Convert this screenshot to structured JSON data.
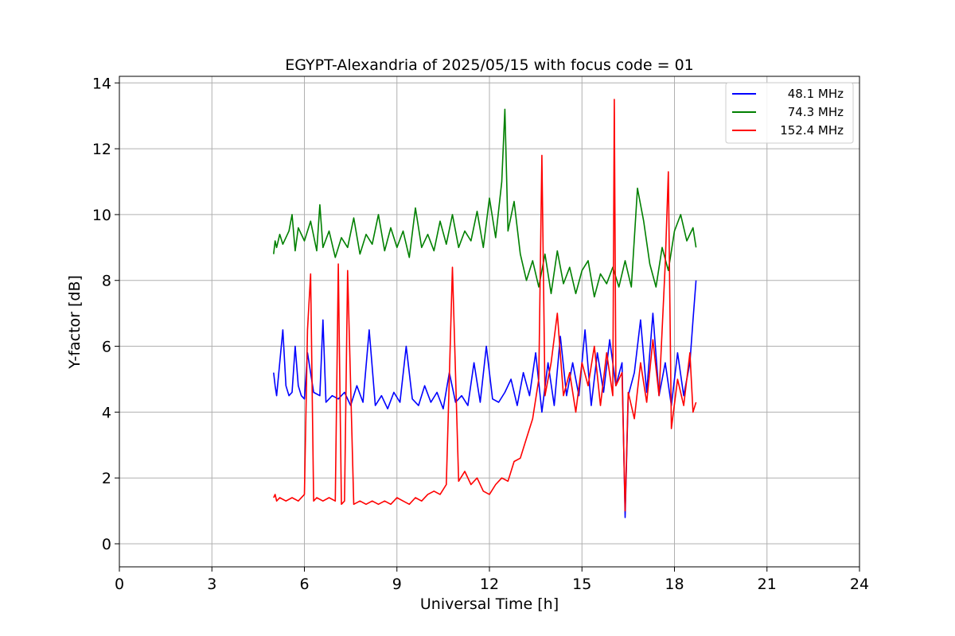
{
  "chart_data": {
    "type": "line",
    "title": "EGYPT-Alexandria of 2025/05/15 with focus code = 01",
    "xlabel": "Universal Time [h]",
    "ylabel": "Y-factor [dB]",
    "xlim": [
      0,
      24
    ],
    "ylim": [
      -0.7,
      14.2
    ],
    "xticks": [
      0,
      3,
      6,
      9,
      12,
      15,
      18,
      21,
      24
    ],
    "yticks": [
      0,
      2,
      4,
      6,
      8,
      10,
      12,
      14
    ],
    "grid": true,
    "legend_position": "top-right",
    "series": [
      {
        "name": "48.1 MHz",
        "color": "#0000ff",
        "x": [
          5.0,
          5.05,
          5.1,
          5.2,
          5.3,
          5.4,
          5.5,
          5.6,
          5.7,
          5.8,
          5.9,
          6.0,
          6.1,
          6.3,
          6.5,
          6.6,
          6.7,
          6.9,
          7.1,
          7.3,
          7.5,
          7.7,
          7.9,
          8.1,
          8.3,
          8.5,
          8.7,
          8.9,
          9.1,
          9.3,
          9.5,
          9.7,
          9.9,
          10.1,
          10.3,
          10.5,
          10.7,
          10.9,
          11.1,
          11.3,
          11.5,
          11.7,
          11.9,
          12.1,
          12.3,
          12.5,
          12.7,
          12.9,
          13.1,
          13.3,
          13.5,
          13.7,
          13.9,
          14.1,
          14.3,
          14.5,
          14.7,
          14.9,
          15.1,
          15.3,
          15.5,
          15.7,
          15.9,
          16.1,
          16.3,
          16.4,
          16.5,
          16.7,
          16.9,
          17.1,
          17.3,
          17.5,
          17.7,
          17.9,
          18.1,
          18.3,
          18.5,
          18.6,
          18.7
        ],
        "values": [
          5.2,
          4.8,
          4.5,
          5.5,
          6.5,
          4.8,
          4.5,
          4.6,
          6.0,
          4.8,
          4.5,
          4.4,
          5.8,
          4.6,
          4.5,
          6.8,
          4.3,
          4.5,
          4.4,
          4.6,
          4.2,
          4.8,
          4.3,
          6.5,
          4.2,
          4.5,
          4.1,
          4.6,
          4.3,
          6.0,
          4.4,
          4.2,
          4.8,
          4.3,
          4.6,
          4.1,
          5.2,
          4.3,
          4.5,
          4.2,
          5.5,
          4.3,
          6.0,
          4.4,
          4.3,
          4.6,
          5.0,
          4.2,
          5.2,
          4.5,
          5.8,
          4.0,
          5.5,
          4.2,
          6.3,
          4.5,
          5.5,
          4.5,
          6.5,
          4.2,
          5.8,
          4.6,
          6.2,
          4.8,
          5.5,
          0.8,
          4.5,
          5.2,
          6.8,
          4.6,
          7.0,
          4.5,
          5.5,
          4.2,
          5.8,
          4.5,
          5.5,
          6.8,
          8.0
        ]
      },
      {
        "name": "74.3 MHz",
        "color": "#008000",
        "x": [
          5.0,
          5.05,
          5.1,
          5.2,
          5.3,
          5.5,
          5.6,
          5.7,
          5.8,
          6.0,
          6.2,
          6.4,
          6.5,
          6.6,
          6.8,
          7.0,
          7.2,
          7.4,
          7.6,
          7.8,
          8.0,
          8.2,
          8.4,
          8.6,
          8.8,
          9.0,
          9.2,
          9.4,
          9.6,
          9.8,
          10.0,
          10.2,
          10.4,
          10.6,
          10.8,
          11.0,
          11.2,
          11.4,
          11.6,
          11.8,
          12.0,
          12.2,
          12.4,
          12.5,
          12.6,
          12.8,
          13.0,
          13.2,
          13.4,
          13.6,
          13.8,
          14.0,
          14.2,
          14.4,
          14.6,
          14.8,
          15.0,
          15.2,
          15.4,
          15.6,
          15.8,
          16.0,
          16.2,
          16.4,
          16.6,
          16.8,
          17.0,
          17.2,
          17.4,
          17.6,
          17.8,
          18.0,
          18.2,
          18.4,
          18.6,
          18.7
        ],
        "values": [
          8.8,
          9.2,
          9.0,
          9.4,
          9.1,
          9.5,
          10.0,
          8.9,
          9.6,
          9.2,
          9.8,
          8.9,
          10.3,
          9.0,
          9.5,
          8.7,
          9.3,
          9.0,
          9.9,
          8.8,
          9.4,
          9.1,
          10.0,
          8.9,
          9.6,
          9.0,
          9.5,
          8.7,
          10.2,
          9.0,
          9.4,
          8.9,
          9.8,
          9.1,
          10.0,
          9.0,
          9.5,
          9.2,
          10.1,
          9.0,
          10.5,
          9.3,
          11.0,
          13.2,
          9.5,
          10.4,
          8.8,
          8.0,
          8.6,
          7.8,
          8.8,
          7.6,
          8.9,
          7.9,
          8.4,
          7.6,
          8.3,
          8.6,
          7.5,
          8.2,
          7.9,
          8.4,
          7.8,
          8.6,
          7.8,
          10.8,
          9.8,
          8.5,
          7.8,
          9.0,
          8.3,
          9.5,
          10.0,
          9.2,
          9.6,
          9.0
        ]
      },
      {
        "name": "152.4 MHz",
        "color": "#ff0000",
        "x": [
          5.0,
          5.05,
          5.1,
          5.2,
          5.4,
          5.6,
          5.8,
          6.0,
          6.1,
          6.2,
          6.3,
          6.4,
          6.6,
          6.8,
          7.0,
          7.1,
          7.2,
          7.3,
          7.4,
          7.6,
          7.8,
          8.0,
          8.2,
          8.4,
          8.6,
          8.8,
          9.0,
          9.2,
          9.4,
          9.6,
          9.8,
          10.0,
          10.2,
          10.4,
          10.6,
          10.8,
          11.0,
          11.2,
          11.4,
          11.6,
          11.8,
          12.0,
          12.2,
          12.4,
          12.6,
          12.8,
          13.0,
          13.2,
          13.4,
          13.6,
          13.7,
          13.8,
          14.0,
          14.2,
          14.4,
          14.6,
          14.8,
          15.0,
          15.2,
          15.4,
          15.6,
          15.8,
          16.0,
          16.05,
          16.1,
          16.3,
          16.4,
          16.5,
          16.7,
          16.9,
          17.1,
          17.3,
          17.5,
          17.7,
          17.8,
          17.9,
          18.1,
          18.3,
          18.5,
          18.6,
          18.7
        ],
        "values": [
          1.4,
          1.5,
          1.3,
          1.4,
          1.3,
          1.4,
          1.3,
          1.5,
          6.5,
          8.2,
          1.3,
          1.4,
          1.3,
          1.4,
          1.3,
          8.5,
          1.2,
          1.3,
          8.3,
          1.2,
          1.3,
          1.2,
          1.3,
          1.2,
          1.3,
          1.2,
          1.4,
          1.3,
          1.2,
          1.4,
          1.3,
          1.5,
          1.6,
          1.5,
          1.8,
          8.4,
          1.9,
          2.2,
          1.8,
          2.0,
          1.6,
          1.5,
          1.8,
          2.0,
          1.9,
          2.5,
          2.6,
          3.2,
          3.8,
          5.0,
          11.8,
          4.5,
          5.5,
          7.0,
          4.5,
          5.2,
          4.0,
          5.5,
          4.8,
          6.0,
          4.2,
          5.8,
          4.5,
          13.5,
          4.8,
          5.2,
          1.0,
          4.6,
          3.8,
          5.5,
          4.3,
          6.2,
          4.5,
          8.5,
          11.3,
          3.5,
          5.0,
          4.2,
          5.8,
          4.0,
          4.3
        ]
      }
    ]
  }
}
